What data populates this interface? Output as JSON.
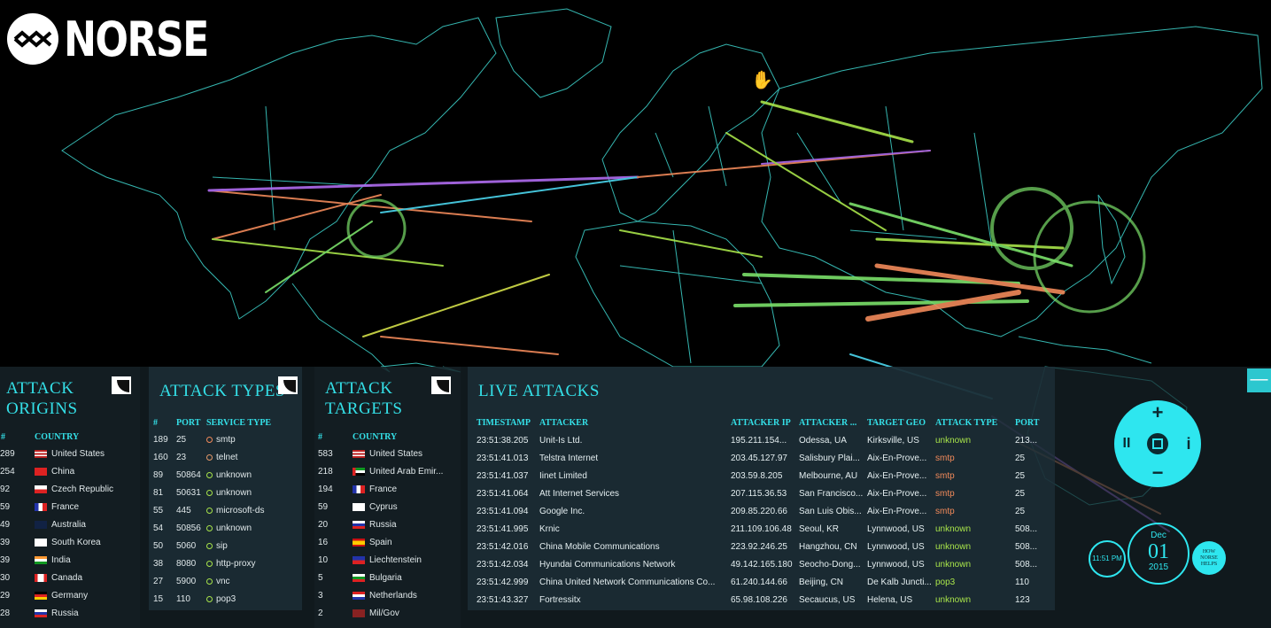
{
  "brand": {
    "name": "NORSE"
  },
  "panels": {
    "origins": {
      "title": [
        "ATTACK",
        "ORIGINS"
      ],
      "headers": [
        "#",
        "COUNTRY"
      ],
      "rows": [
        {
          "count": "289",
          "country": "United States",
          "flag": "us"
        },
        {
          "count": "254",
          "country": "China",
          "flag": "cn"
        },
        {
          "count": "92",
          "country": "Czech Republic",
          "flag": "cz"
        },
        {
          "count": "59",
          "country": "France",
          "flag": "fr"
        },
        {
          "count": "49",
          "country": "Australia",
          "flag": "au"
        },
        {
          "count": "39",
          "country": "South Korea",
          "flag": "kr"
        },
        {
          "count": "39",
          "country": "India",
          "flag": "in"
        },
        {
          "count": "30",
          "country": "Canada",
          "flag": "ca"
        },
        {
          "count": "29",
          "country": "Germany",
          "flag": "de"
        },
        {
          "count": "28",
          "country": "Russia",
          "flag": "ru"
        }
      ]
    },
    "types": {
      "title": [
        "ATTACK TYPES"
      ],
      "headers": [
        "#",
        "PORT",
        "SERVICE TYPE"
      ],
      "rows": [
        {
          "count": "189",
          "port": "25",
          "service": "smtp"
        },
        {
          "count": "160",
          "port": "23",
          "service": "telnet"
        },
        {
          "count": "89",
          "port": "50864",
          "service": "unknown"
        },
        {
          "count": "81",
          "port": "50631",
          "service": "unknown"
        },
        {
          "count": "55",
          "port": "445",
          "service": "microsoft-ds"
        },
        {
          "count": "54",
          "port": "50856",
          "service": "unknown"
        },
        {
          "count": "50",
          "port": "5060",
          "service": "sip"
        },
        {
          "count": "38",
          "port": "8080",
          "service": "http-proxy"
        },
        {
          "count": "27",
          "port": "5900",
          "service": "vnc"
        },
        {
          "count": "15",
          "port": "110",
          "service": "pop3"
        }
      ]
    },
    "targets": {
      "title": [
        "ATTACK",
        "TARGETS"
      ],
      "headers": [
        "#",
        "COUNTRY"
      ],
      "rows": [
        {
          "count": "583",
          "country": "United States",
          "flag": "us"
        },
        {
          "count": "218",
          "country": "United Arab Emir...",
          "flag": "ae"
        },
        {
          "count": "194",
          "country": "France",
          "flag": "fr"
        },
        {
          "count": "59",
          "country": "Cyprus",
          "flag": "cy"
        },
        {
          "count": "20",
          "country": "Russia",
          "flag": "ru"
        },
        {
          "count": "16",
          "country": "Spain",
          "flag": "es"
        },
        {
          "count": "10",
          "country": "Liechtenstein",
          "flag": "li"
        },
        {
          "count": "5",
          "country": "Bulgaria",
          "flag": "bg"
        },
        {
          "count": "3",
          "country": "Netherlands",
          "flag": "nl"
        },
        {
          "count": "2",
          "country": "Mil/Gov",
          "flag": "mil"
        }
      ]
    },
    "live": {
      "title": "LIVE ATTACKS",
      "headers": [
        "TIMESTAMP",
        "ATTACKER",
        "ATTACKER IP",
        "ATTACKER ...",
        "TARGET GEO",
        "ATTACK TYPE",
        "PORT"
      ],
      "rows": [
        {
          "ts": "23:51:38.205",
          "attacker": "Unit-Is Ltd.",
          "ip": "195.211.154...",
          "geo": "Odessa, UA",
          "target": "Kirksville, US",
          "type": "unknown",
          "port": "213..."
        },
        {
          "ts": "23:51:41.013",
          "attacker": "Telstra Internet",
          "ip": "203.45.127.97",
          "geo": "Salisbury Plai...",
          "target": "Aix-En-Prove...",
          "type": "smtp",
          "port": "25"
        },
        {
          "ts": "23:51:41.037",
          "attacker": "Iinet Limited",
          "ip": "203.59.8.205",
          "geo": "Melbourne, AU",
          "target": "Aix-En-Prove...",
          "type": "smtp",
          "port": "25"
        },
        {
          "ts": "23:51:41.064",
          "attacker": "Att Internet Services",
          "ip": "207.115.36.53",
          "geo": "San Francisco...",
          "target": "Aix-En-Prove...",
          "type": "smtp",
          "port": "25"
        },
        {
          "ts": "23:51:41.094",
          "attacker": "Google Inc.",
          "ip": "209.85.220.66",
          "geo": "San Luis Obis...",
          "target": "Aix-En-Prove...",
          "type": "smtp",
          "port": "25"
        },
        {
          "ts": "23:51:41.995",
          "attacker": "Krnic",
          "ip": "211.109.106.48",
          "geo": "Seoul, KR",
          "target": "Lynnwood, US",
          "type": "unknown",
          "port": "508..."
        },
        {
          "ts": "23:51:42.016",
          "attacker": "China Mobile Communications",
          "ip": "223.92.246.25",
          "geo": "Hangzhou, CN",
          "target": "Lynnwood, US",
          "type": "unknown",
          "port": "508..."
        },
        {
          "ts": "23:51:42.034",
          "attacker": "Hyundai Communications Network",
          "ip": "49.142.165.180",
          "geo": "Seocho-Dong...",
          "target": "Lynnwood, US",
          "type": "unknown",
          "port": "508..."
        },
        {
          "ts": "23:51:42.999",
          "attacker": "China United Network Communications Co...",
          "ip": "61.240.144.66",
          "geo": "Beijing, CN",
          "target": "De Kalb Juncti...",
          "type": "pop3",
          "port": "110"
        },
        {
          "ts": "23:51:43.327",
          "attacker": "Fortressitx",
          "ip": "65.98.108.226",
          "geo": "Secaucus, US",
          "target": "Helena, US",
          "type": "unknown",
          "port": "123"
        }
      ]
    }
  },
  "controls": {
    "time": "11:51 PM",
    "month": "Dec",
    "day": "01",
    "year": "2015",
    "help": [
      "HOW",
      "NORSE",
      "HELPS"
    ],
    "minus_label": "—",
    "dpad": {
      "up": "+",
      "down": "−",
      "left": "II",
      "right": "i"
    }
  },
  "colors": {
    "accent": "#2ee6ef",
    "map_lines": "#3fd6cf",
    "smtp": "#f28a5a",
    "unknown": "#a8e44a",
    "pop3": "#a8e44a"
  }
}
